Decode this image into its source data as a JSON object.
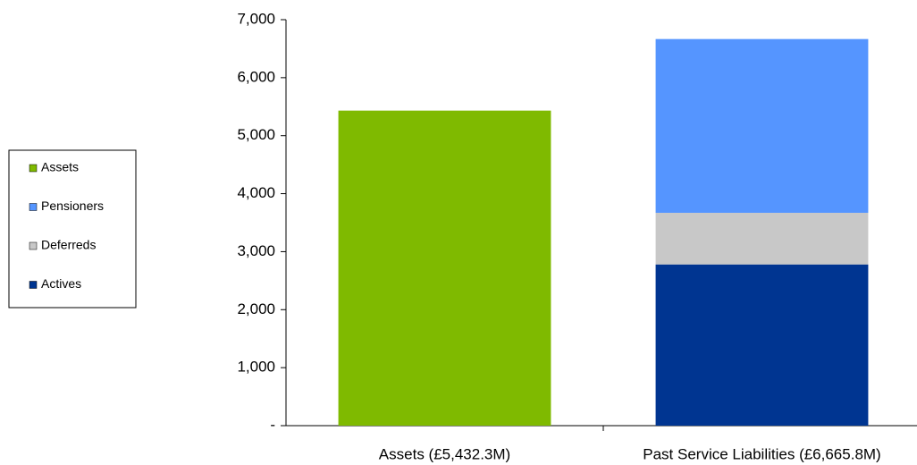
{
  "chart_data": {
    "type": "stacked_bar",
    "categories": [
      "Assets (£5,432.3M)",
      "Past Service Liabilities (£6,665.8M)"
    ],
    "series": [
      {
        "name": "Assets",
        "color": "#7fba00",
        "values": [
          5432.3,
          null
        ]
      },
      {
        "name": "Pensioners",
        "color": "#5595ff",
        "values": [
          null,
          2996
        ]
      },
      {
        "name": "Deferreds",
        "color": "#c8c8c8",
        "values": [
          null,
          890
        ]
      },
      {
        "name": "Actives",
        "color": "#003591",
        "values": [
          null,
          2780
        ]
      }
    ],
    "ylim": [
      0,
      7000
    ],
    "yticks": [
      {
        "value": 0,
        "label": "-"
      },
      {
        "value": 1000,
        "label": "1,000"
      },
      {
        "value": 2000,
        "label": "2,000"
      },
      {
        "value": 3000,
        "label": "3,000"
      },
      {
        "value": 4000,
        "label": "4,000"
      },
      {
        "value": 5000,
        "label": "5,000"
      },
      {
        "value": 6000,
        "label": "6,000"
      },
      {
        "value": 7000,
        "label": "7,000"
      }
    ],
    "legend": "left",
    "grid": false
  }
}
